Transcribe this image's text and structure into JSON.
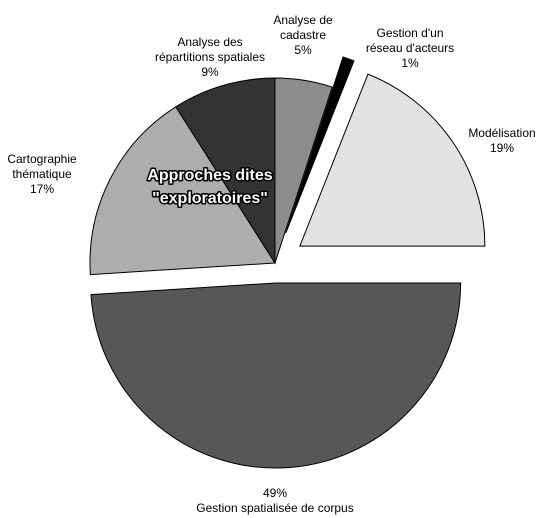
{
  "chart_data": {
    "type": "pie",
    "categories": [
      [
        "Analyse de",
        "cadastre"
      ],
      [
        "Gestion d'un",
        "réseau d'acteurs"
      ],
      [
        "Modélisation"
      ],
      [
        "Gestion spatialisée de corpus"
      ],
      [
        "Cartographie",
        "thématique"
      ],
      [
        "Analyse des",
        "répartitions spatiales"
      ]
    ],
    "values": [
      5,
      1,
      19,
      49,
      17,
      9
    ],
    "value_labels": [
      "5%",
      "1%",
      "19%",
      "49%",
      "17%",
      "9%"
    ],
    "colors": [
      "#8c8c8c",
      "#000000",
      "#e2e2e2",
      "#575757",
      "#adadad",
      "#333333"
    ],
    "annotation": [
      "Approches dites",
      "\"exploratoires\""
    ]
  }
}
